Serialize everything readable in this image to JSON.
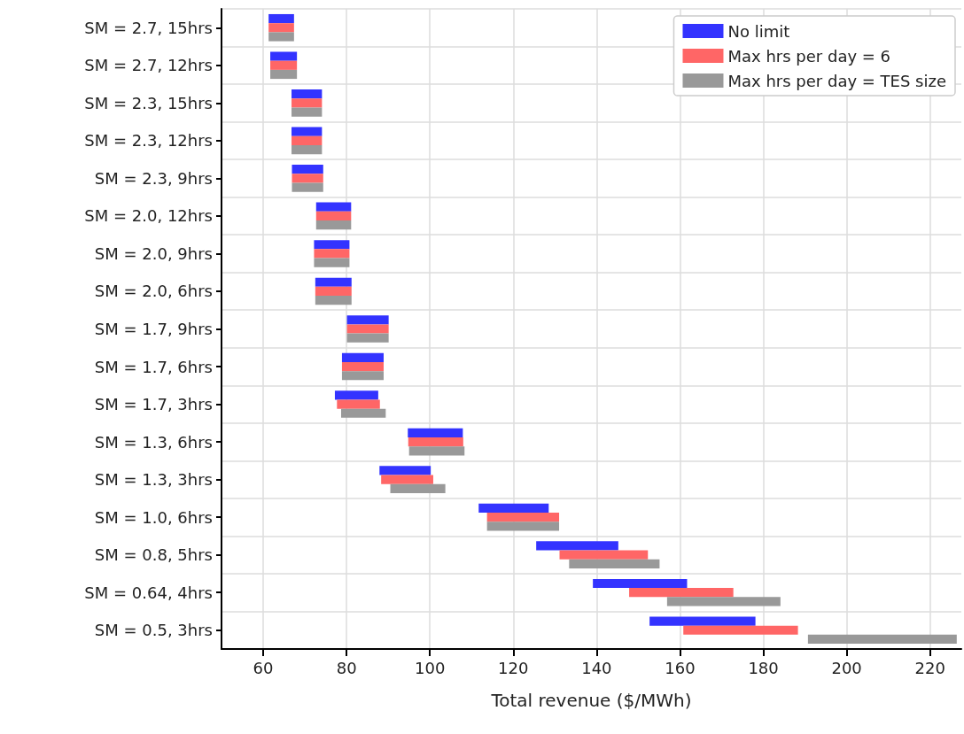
{
  "chart_data": {
    "type": "bar",
    "orientation": "horizontal",
    "xlabel": "Total revenue ($/MWh)",
    "categories": [
      "SM = 2.7, 15hrs",
      "SM = 2.7, 12hrs",
      "SM = 2.3, 15hrs",
      "SM = 2.3, 12hrs",
      "SM = 2.3, 9hrs",
      "SM = 2.0, 12hrs",
      "SM = 2.0, 9hrs",
      "SM = 2.0, 6hrs",
      "SM = 1.7, 9hrs",
      "SM = 1.7, 6hrs",
      "SM = 1.7, 3hrs",
      "SM = 1.3, 6hrs",
      "SM = 1.3, 3hrs",
      "SM = 1.0, 6hrs",
      "SM = 0.8, 5hrs",
      "SM = 0.64, 4hrs",
      "SM = 0.5, 3hrs"
    ],
    "series": [
      {
        "name": "No limit",
        "color": "#3333ff",
        "base": [
          61.3,
          61.7,
          66.8,
          66.8,
          66.9,
          72.7,
          72.2,
          72.5,
          80.1,
          78.9,
          77.2,
          94.7,
          87.9,
          111.7,
          125.5,
          139.1,
          152.7
        ],
        "values": [
          6.1,
          6.4,
          7.3,
          7.3,
          7.5,
          8.4,
          8.5,
          8.7,
          10.0,
          10.0,
          10.4,
          13.2,
          12.3,
          16.8,
          19.7,
          22.6,
          25.4
        ]
      },
      {
        "name": "Max hrs per day = 6",
        "color": "#ff6666",
        "base": [
          61.3,
          61.7,
          66.8,
          66.8,
          66.9,
          72.7,
          72.2,
          72.5,
          80.1,
          78.9,
          77.7,
          94.8,
          88.3,
          113.7,
          131.1,
          147.8,
          160.8
        ],
        "values": [
          6.1,
          6.4,
          7.3,
          7.3,
          7.5,
          8.4,
          8.5,
          8.7,
          10.0,
          10.0,
          10.3,
          13.2,
          12.5,
          17.3,
          21.2,
          25.0,
          27.5
        ]
      },
      {
        "name": "Max hrs per day = TES size",
        "color": "#999999",
        "base": [
          61.3,
          61.7,
          66.8,
          66.8,
          66.9,
          72.7,
          72.2,
          72.5,
          80.1,
          78.9,
          78.7,
          95.0,
          90.5,
          113.7,
          133.4,
          156.9,
          190.7
        ],
        "values": [
          6.1,
          6.4,
          7.3,
          7.3,
          7.5,
          8.4,
          8.5,
          8.7,
          10.0,
          10.0,
          10.7,
          13.3,
          13.2,
          17.3,
          21.7,
          27.2,
          35.7
        ]
      }
    ],
    "xlim": [
      50,
      227.5
    ],
    "xticks": [
      60,
      80,
      100,
      120,
      140,
      160,
      180,
      200,
      220
    ],
    "grid": true,
    "legend": "top right"
  }
}
